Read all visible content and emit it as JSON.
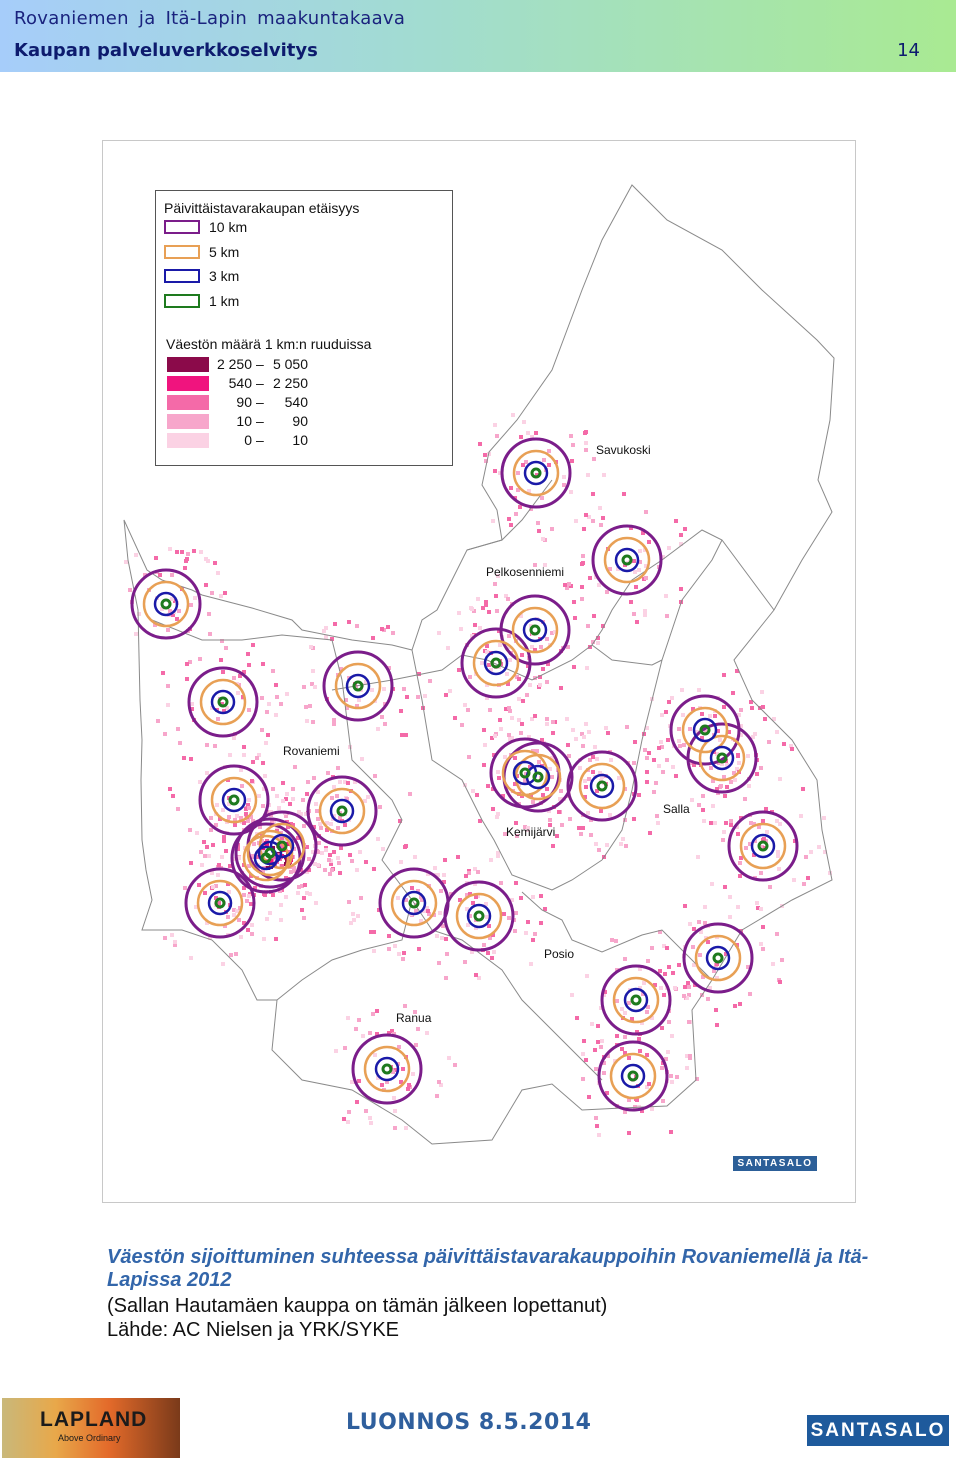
{
  "header": {
    "title": "Rovaniemen ja Itä-Lapin maakuntakaava",
    "subtitle": "Kaupan palveluverkkoselvitys",
    "page_number": "14"
  },
  "map": {
    "legend": {
      "distance_title": "Päivittäistavarakaupan etäisyys",
      "distance_items": [
        {
          "label": "10 km",
          "color": "#7b1d8a"
        },
        {
          "label": "5 km",
          "color": "#e8a055"
        },
        {
          "label": "3 km",
          "color": "#1a1aa8"
        },
        {
          "label": "1 km",
          "color": "#1e7a1e"
        }
      ],
      "population_title": "Väestön määrä 1 km:n ruuduissa",
      "population_items": [
        {
          "from": "2 250",
          "to": "5 050",
          "color": "#8b0a4a"
        },
        {
          "from": "540",
          "to": "2 250",
          "color": "#f0147e"
        },
        {
          "from": "90",
          "to": "540",
          "color": "#f46aa8"
        },
        {
          "from": "10",
          "to": "90",
          "color": "#f7a6cb"
        },
        {
          "from": "0",
          "to": "10",
          "color": "#fbd2e4"
        }
      ]
    },
    "place_labels": [
      "Savukoski",
      "Pelkosenniemi",
      "Rovaniemi",
      "Kemijärvi",
      "Salla",
      "Posio",
      "Ranua"
    ],
    "badge": "SANTASALO"
  },
  "caption": "Väestön sijoittuminen suhteessa päivittäistavarakauppoihin Rovaniemellä ja Itä-Lapissa 2012",
  "note": "(Sallan Hautamäen kauppa on tämän jälkeen lopettanut)",
  "source": "Lähde: AC Nielsen ja YRK/SYKE",
  "footer": {
    "lapland_name": "LAPLAND",
    "lapland_tagline": "Above Ordinary",
    "draft_label": "LUONNOS  8.5.2014",
    "santasalo_label": "SANTASALO"
  }
}
